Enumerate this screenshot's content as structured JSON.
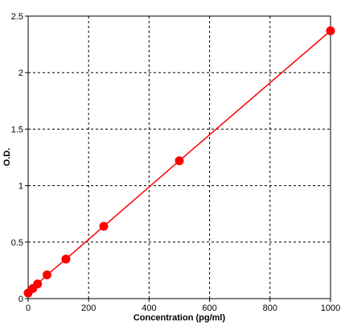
{
  "chart_data": {
    "type": "line",
    "title": "",
    "xlabel": "Concentration (pg/ml)",
    "ylabel": "O.D.",
    "xlim": [
      0,
      1000
    ],
    "ylim": [
      0,
      2.5
    ],
    "x_ticks": [
      "0",
      "200",
      "400",
      "600",
      "800",
      "1000"
    ],
    "y_ticks": [
      "0",
      "0.5",
      "1",
      "1.5",
      "2",
      "2.5"
    ],
    "x_tick_values": [
      0,
      200,
      400,
      600,
      800,
      1000
    ],
    "y_tick_values": [
      0,
      0.5,
      1,
      1.5,
      2,
      2.5
    ],
    "grid": true,
    "grid_style": "dashed",
    "legend": "none",
    "series": [
      {
        "color": "#ff0000",
        "x": [
          0,
          15.6,
          31.2,
          62.5,
          125,
          250,
          500,
          1000
        ],
        "y": [
          0.05,
          0.09,
          0.13,
          0.21,
          0.35,
          0.64,
          1.22,
          2.37
        ]
      }
    ]
  }
}
